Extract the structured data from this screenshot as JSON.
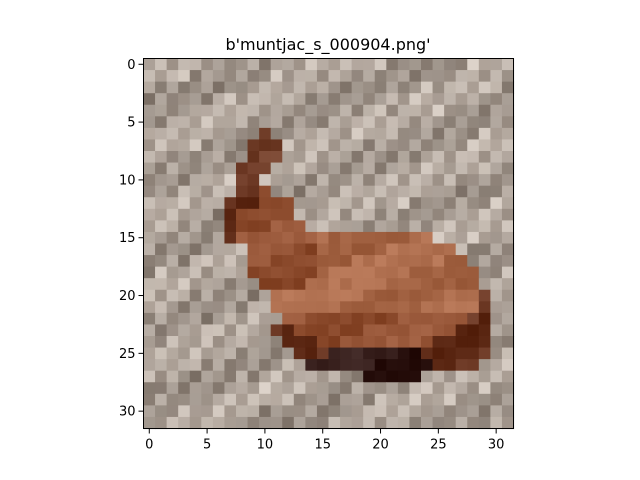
{
  "title": "b'muntjac_s_000904.png'",
  "image": {
    "description_only_for_semantics": "",
    "grid_size": [
      32,
      32
    ],
    "subject_icon": "muntjac-deer-image",
    "palette": {
      "background": "#b9ada3",
      "background_light": "#cfc5bc",
      "background_dark": "#a1958b",
      "fur": "#9b5a3c",
      "fur_light": "#b27252",
      "fur_dark": "#6e3a26",
      "shadow": "#3b2320",
      "ear": "#7d4a35"
    }
  },
  "axes": {
    "x_ticks": [
      "0",
      "5",
      "10",
      "15",
      "20",
      "25",
      "30"
    ],
    "y_ticks": [
      "0",
      "5",
      "10",
      "15",
      "20",
      "25",
      "30"
    ],
    "x_tick_values": [
      0,
      5,
      10,
      15,
      20,
      25,
      30
    ],
    "y_tick_values": [
      0,
      5,
      10,
      15,
      20,
      25,
      30
    ]
  }
}
